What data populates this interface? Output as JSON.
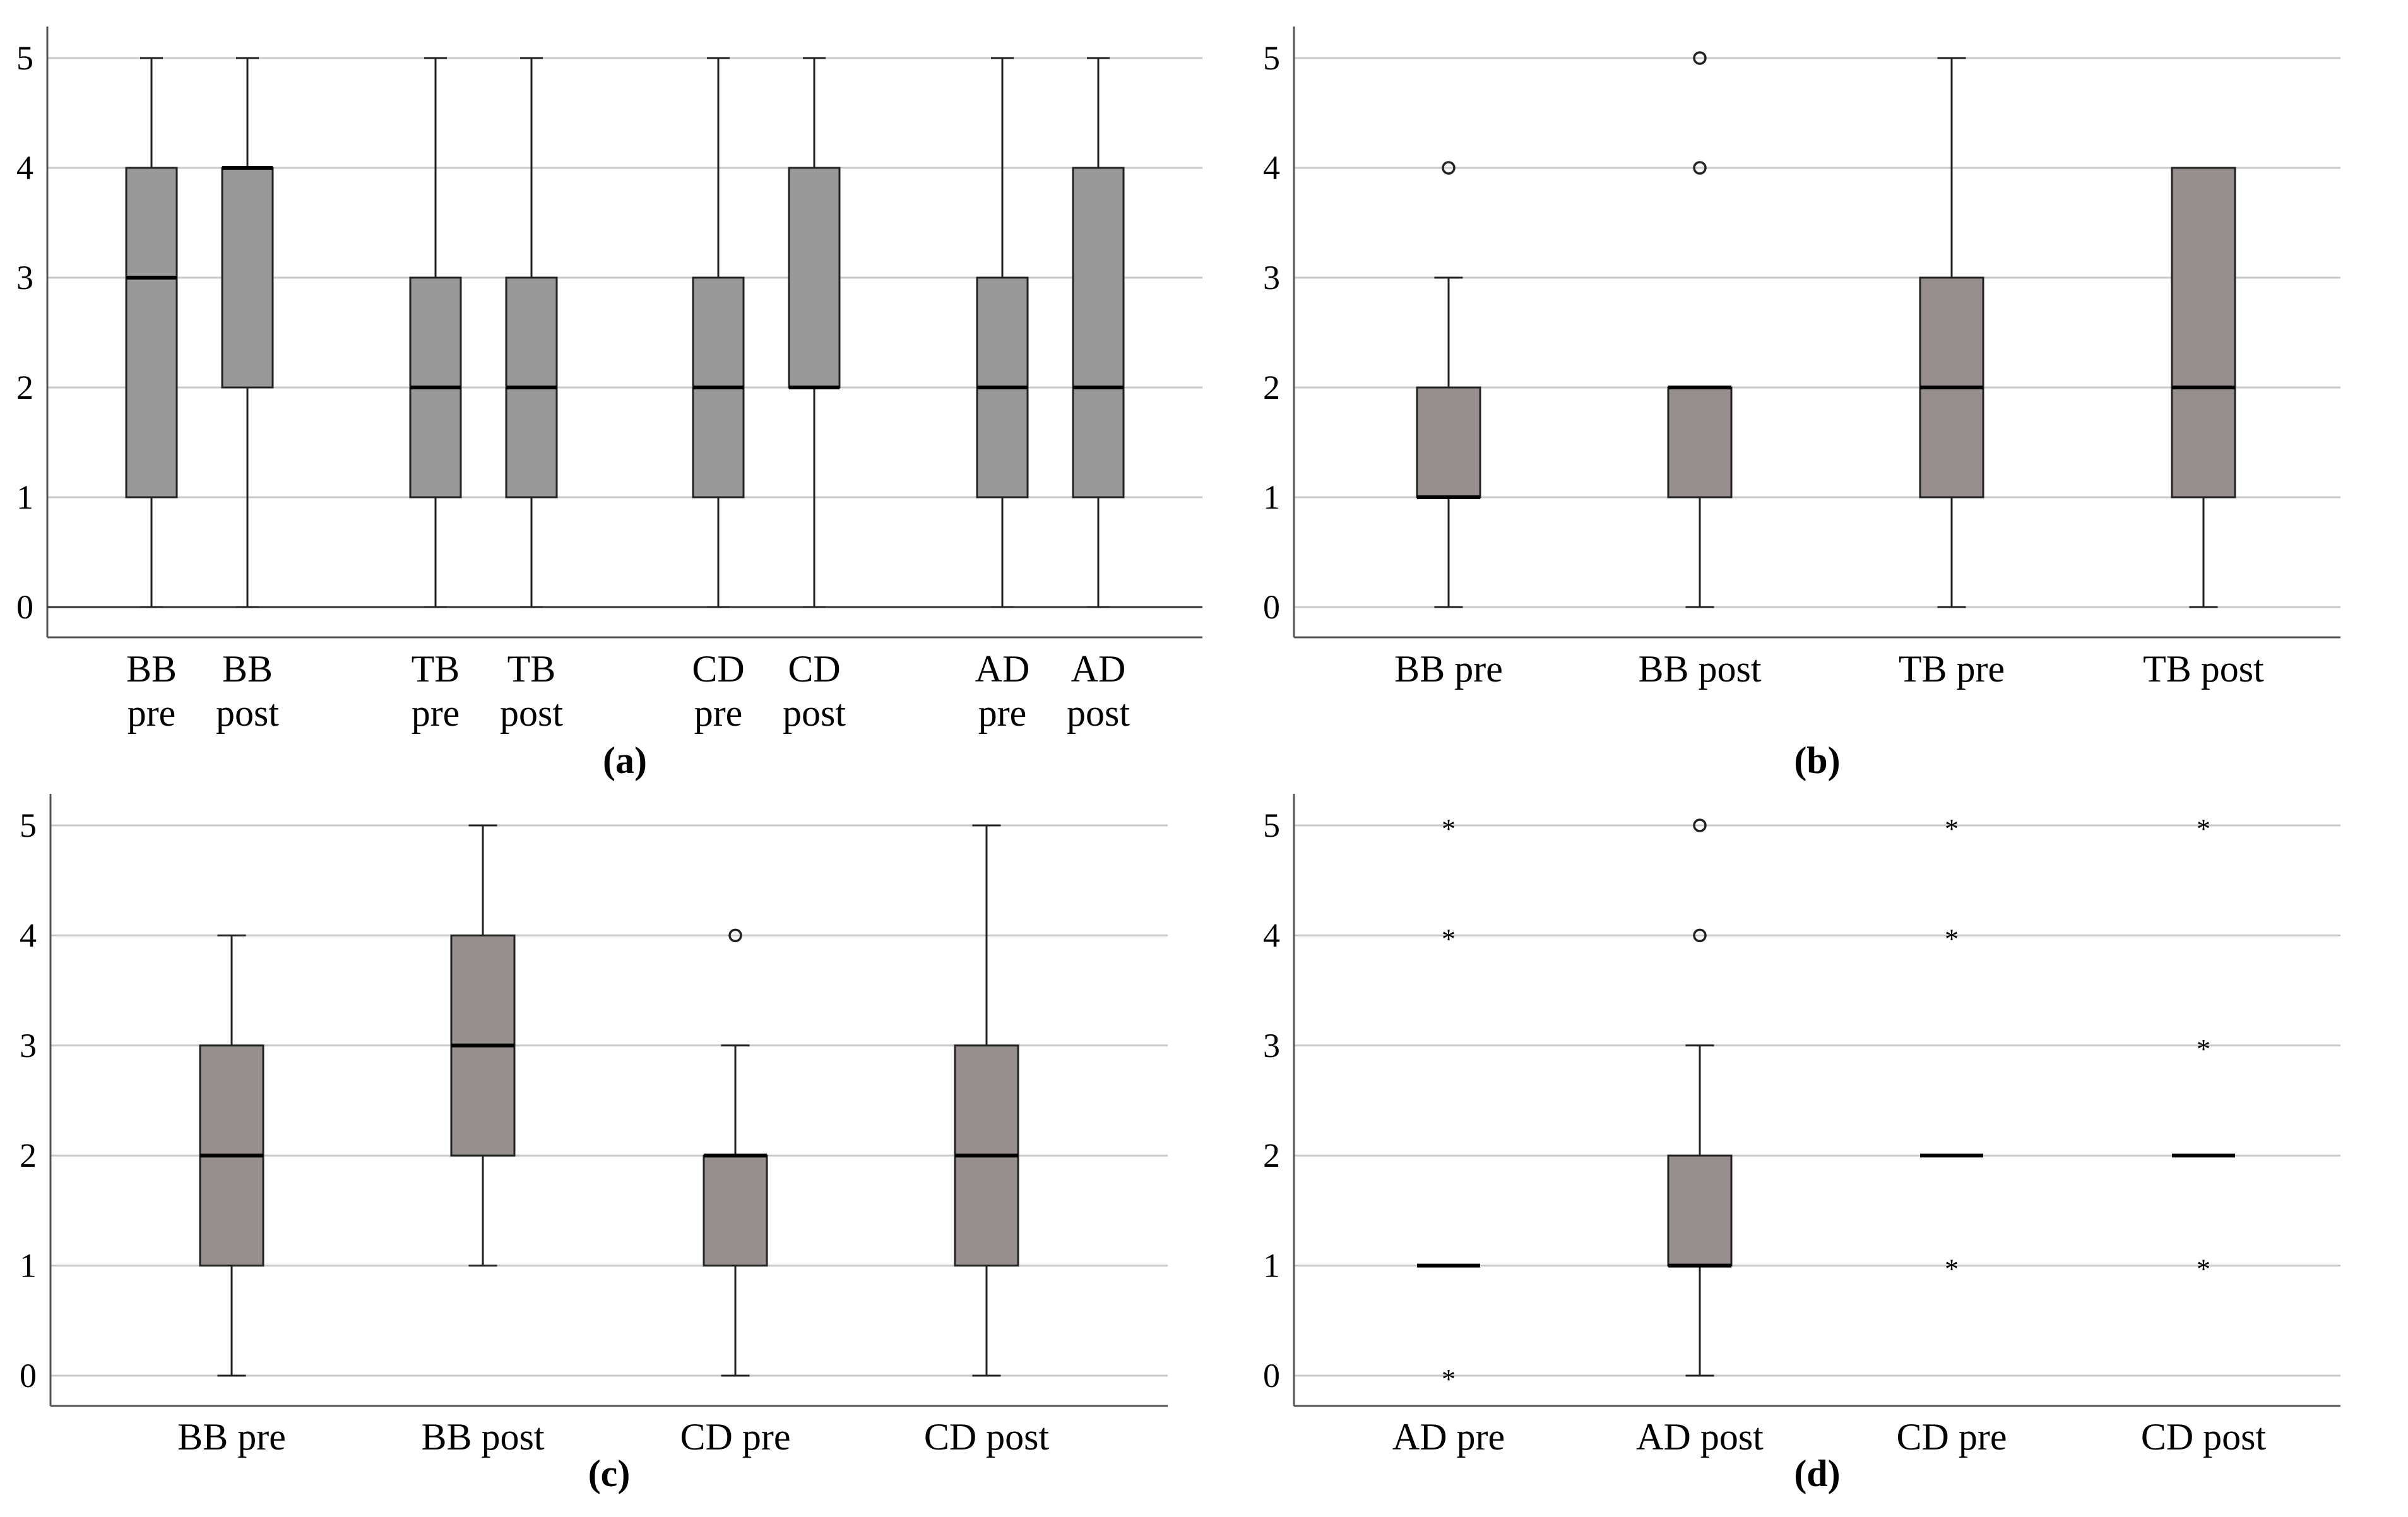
{
  "figure": {
    "colors": {
      "grid": "#c9c9c9",
      "axis": "#555555",
      "box_a": "#999999",
      "box_bcd": "#978f8d",
      "line": "#000000"
    }
  },
  "chart_data": [
    {
      "type": "boxplot",
      "panel_label": "(a)",
      "ylim": [
        0,
        5
      ],
      "yticks": [
        0,
        1,
        2,
        3,
        4,
        5
      ],
      "grid": true,
      "categories": [
        {
          "label": [
            "BB",
            "pre"
          ],
          "min": 0,
          "q1": 1,
          "median": 3,
          "q3": 4,
          "max": 5,
          "outliers": [],
          "extremes": []
        },
        {
          "label": [
            "BB",
            "post"
          ],
          "min": 0,
          "q1": 2,
          "median": 4,
          "q3": 4,
          "max": 5,
          "outliers": [],
          "extremes": []
        },
        {
          "label": [
            "TB",
            "pre"
          ],
          "min": 0,
          "q1": 1,
          "median": 2,
          "q3": 3,
          "max": 5,
          "outliers": [],
          "extremes": []
        },
        {
          "label": [
            "TB",
            "post"
          ],
          "min": 0,
          "q1": 1,
          "median": 2,
          "q3": 3,
          "max": 5,
          "outliers": [],
          "extremes": []
        },
        {
          "label": [
            "CD",
            "pre"
          ],
          "min": 0,
          "q1": 1,
          "median": 2,
          "q3": 3,
          "max": 5,
          "outliers": [],
          "extremes": []
        },
        {
          "label": [
            "CD",
            "post"
          ],
          "min": 0,
          "q1": 2,
          "median": 2,
          "q3": 4,
          "max": 5,
          "outliers": [],
          "extremes": []
        },
        {
          "label": [
            "AD",
            "pre"
          ],
          "min": 0,
          "q1": 1,
          "median": 2,
          "q3": 3,
          "max": 5,
          "outliers": [],
          "extremes": []
        },
        {
          "label": [
            "AD",
            "post"
          ],
          "min": 0,
          "q1": 1,
          "median": 2,
          "q3": 4,
          "max": 5,
          "outliers": [],
          "extremes": []
        }
      ]
    },
    {
      "type": "boxplot",
      "panel_label": "(b)",
      "ylim": [
        0,
        5
      ],
      "yticks": [
        0,
        1,
        2,
        3,
        4,
        5
      ],
      "grid": true,
      "categories": [
        {
          "label": [
            "BB pre"
          ],
          "min": 0,
          "q1": 1,
          "median": 1,
          "q3": 2,
          "max": 3,
          "outliers": [
            4
          ],
          "extremes": []
        },
        {
          "label": [
            "BB post"
          ],
          "min": 0,
          "q1": 1,
          "median": 2,
          "q3": 2,
          "max": 2,
          "outliers": [
            4,
            5
          ],
          "extremes": []
        },
        {
          "label": [
            "TB pre"
          ],
          "min": 0,
          "q1": 1,
          "median": 2,
          "q3": 3,
          "max": 5,
          "outliers": [],
          "extremes": []
        },
        {
          "label": [
            "TB post"
          ],
          "min": 0,
          "q1": 1,
          "median": 2,
          "q3": 4,
          "max": 4,
          "outliers": [],
          "extremes": []
        }
      ]
    },
    {
      "type": "boxplot",
      "panel_label": "(c)",
      "ylim": [
        0,
        5
      ],
      "yticks": [
        0,
        1,
        2,
        3,
        4,
        5
      ],
      "grid": true,
      "categories": [
        {
          "label": [
            "BB pre"
          ],
          "min": 0,
          "q1": 1,
          "median": 2,
          "q3": 3,
          "max": 4,
          "outliers": [],
          "extremes": []
        },
        {
          "label": [
            "BB post"
          ],
          "min": 1,
          "q1": 2,
          "median": 3,
          "q3": 4,
          "max": 5,
          "outliers": [],
          "extremes": []
        },
        {
          "label": [
            "CD pre"
          ],
          "min": 0,
          "q1": 1,
          "median": 2,
          "q3": 2,
          "max": 3,
          "outliers": [
            4
          ],
          "extremes": []
        },
        {
          "label": [
            "CD post"
          ],
          "min": 0,
          "q1": 1,
          "median": 2,
          "q3": 3,
          "max": 5,
          "outliers": [],
          "extremes": []
        }
      ]
    },
    {
      "type": "boxplot",
      "panel_label": "(d)",
      "ylim": [
        0,
        5
      ],
      "yticks": [
        0,
        1,
        2,
        3,
        4,
        5
      ],
      "grid": true,
      "categories": [
        {
          "label": [
            "AD pre"
          ],
          "min": 1,
          "q1": 1,
          "median": 1,
          "q3": 1,
          "max": 1,
          "outliers": [],
          "extremes": [
            0,
            4,
            5
          ]
        },
        {
          "label": [
            "AD post"
          ],
          "min": 0,
          "q1": 1,
          "median": 1,
          "q3": 2,
          "max": 3,
          "outliers": [
            4,
            5
          ],
          "extremes": []
        },
        {
          "label": [
            "CD pre"
          ],
          "min": 2,
          "q1": 2,
          "median": 2,
          "q3": 2,
          "max": 2,
          "outliers": [],
          "extremes": [
            1,
            4,
            5
          ]
        },
        {
          "label": [
            "CD post"
          ],
          "min": 2,
          "q1": 2,
          "median": 2,
          "q3": 2,
          "max": 2,
          "outliers": [],
          "extremes": [
            1,
            3,
            5
          ]
        }
      ]
    }
  ]
}
